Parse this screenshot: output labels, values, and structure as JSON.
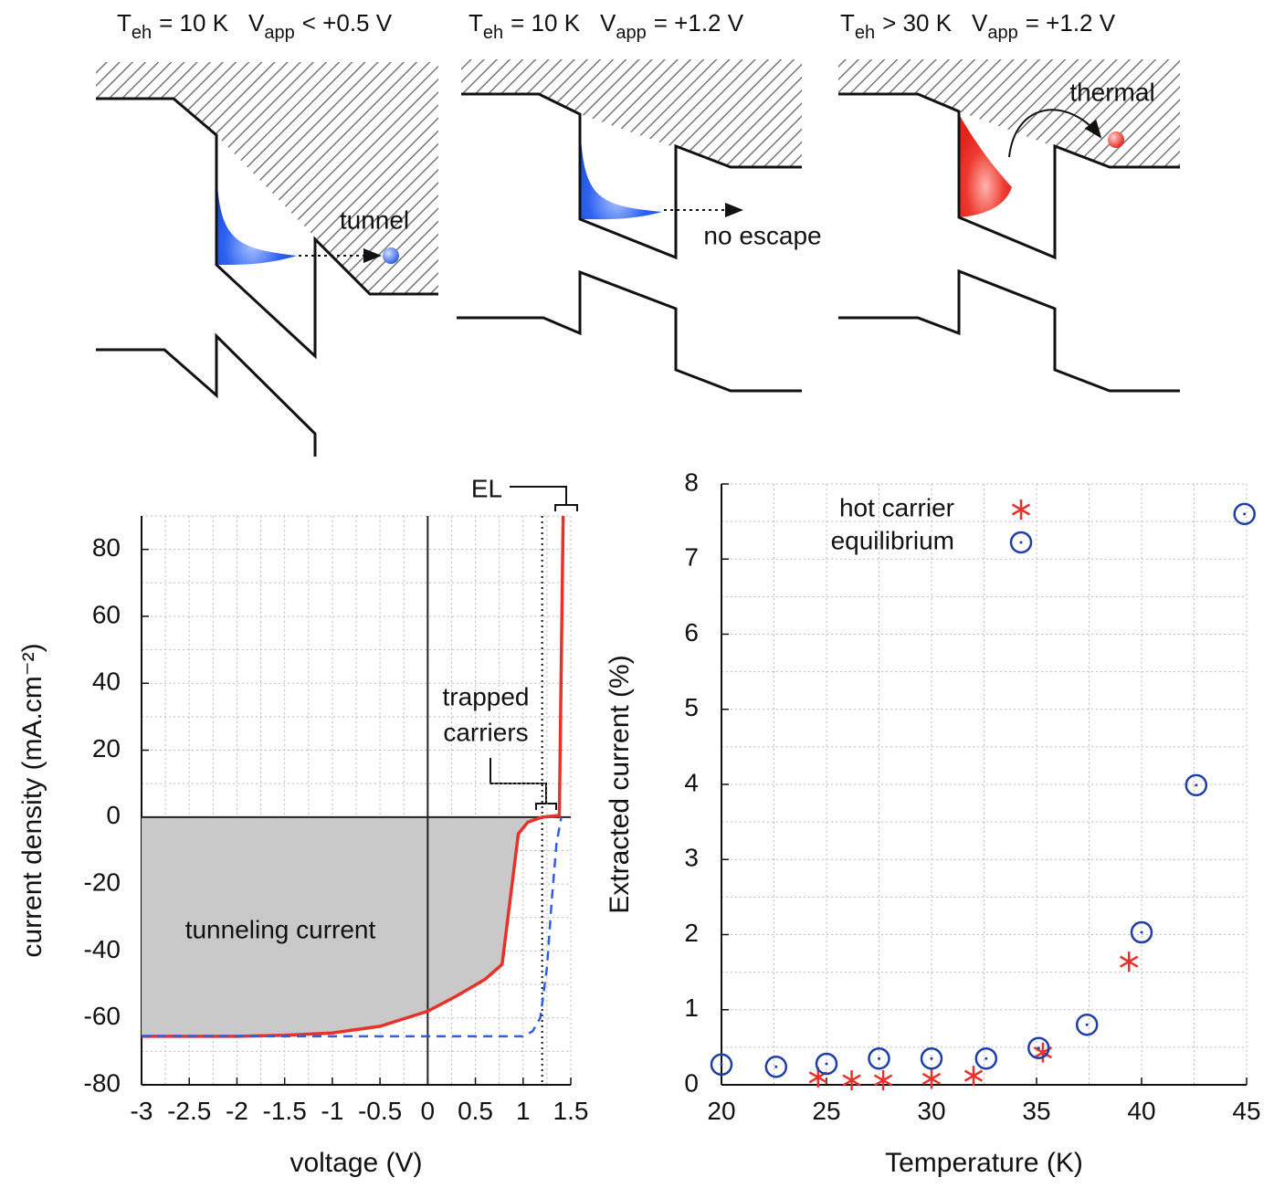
{
  "panels": [
    {
      "temperature": {
        "symbol": "T",
        "sub": "eh",
        "rest": "= 10 K"
      },
      "voltage": {
        "symbol": "V",
        "sub": "app",
        "rest": "< +0.5 V"
      },
      "label": "tunnel"
    },
    {
      "temperature": {
        "symbol": "T",
        "sub": "eh",
        "rest": "= 10 K"
      },
      "voltage": {
        "symbol": "V",
        "sub": "app",
        "rest": "= +1.2 V"
      },
      "label": "no escape"
    },
    {
      "temperature": {
        "symbol": "T",
        "sub": "eh",
        "rest": "> 30 K"
      },
      "voltage": {
        "symbol": "V",
        "sub": "app",
        "rest": "= +1.2 V"
      },
      "label": "thermal"
    }
  ],
  "chart_data": [
    {
      "type": "line",
      "xlabel": "voltage (V)",
      "ylabel": "current density (mA.cm⁻²)",
      "xlim": [
        -3,
        1.5
      ],
      "xticks": [
        -3,
        -2.5,
        -2,
        -1.5,
        -1,
        -0.5,
        0,
        0.5,
        1,
        1.5
      ],
      "ylim": [
        -80,
        90
      ],
      "yticks": [
        -80,
        -60,
        -40,
        -20,
        0,
        20,
        40,
        60,
        80
      ],
      "grid": true,
      "minor_grid": [
        0.25,
        10
      ],
      "zero_lines": true,
      "vline": 1.2,
      "series": [
        {
          "color": "#e8312a",
          "style": "solid",
          "fill": "#c9c9c9",
          "x": [
            -3,
            -2,
            -1.5,
            -1,
            -0.5,
            0,
            0.3,
            0.6,
            0.78,
            0.95,
            1.05,
            1.2,
            1.38,
            1.42
          ],
          "values": [
            -65.5,
            -65.5,
            -65.2,
            -64.5,
            -62.5,
            -58,
            -53.5,
            -48.5,
            -44,
            -5,
            -1.5,
            0,
            0.5,
            90
          ]
        },
        {
          "color": "#2f5fe0",
          "style": "dashed",
          "x": [
            -3,
            -1.5,
            -1,
            0,
            1,
            1.1,
            1.18,
            1.25,
            1.3,
            1.35,
            1.4
          ],
          "values": [
            -65.5,
            -65.5,
            -65.5,
            -65.5,
            -65.5,
            -64,
            -60,
            -45,
            -25,
            -8,
            0
          ]
        }
      ],
      "annotations": {
        "area": "tunneling current",
        "trapped": [
          "trapped",
          "carriers"
        ],
        "el": "EL"
      }
    },
    {
      "type": "scatter",
      "xlabel": "Temperature (K)",
      "ylabel": "Extracted current (%)",
      "xlim": [
        20,
        45
      ],
      "xticks": [
        20,
        25,
        30,
        35,
        40,
        45
      ],
      "ylim": [
        0,
        8
      ],
      "yticks": [
        0,
        1,
        2,
        3,
        4,
        5,
        6,
        7,
        8
      ],
      "grid": true,
      "minor_grid": [
        2.5,
        0.5
      ],
      "legend": "upper left",
      "series": [
        {
          "name": "hot carrier",
          "color": "#e8312a",
          "marker": "asterisk",
          "x": [
            24.6,
            26.2,
            27.7,
            30.0,
            32.0,
            35.3,
            39.4
          ],
          "values": [
            0.1,
            0.06,
            0.06,
            0.08,
            0.12,
            0.43,
            1.64
          ]
        },
        {
          "name": "equilibrium",
          "color": "#1f3fa8",
          "marker": "circle",
          "x": [
            20,
            22.6,
            25,
            27.5,
            30,
            32.6,
            35.1,
            37.4,
            40.0,
            42.6,
            44.9
          ],
          "values": [
            0.27,
            0.24,
            0.28,
            0.35,
            0.35,
            0.35,
            0.49,
            0.8,
            2.03,
            3.99,
            7.6
          ]
        }
      ]
    }
  ]
}
